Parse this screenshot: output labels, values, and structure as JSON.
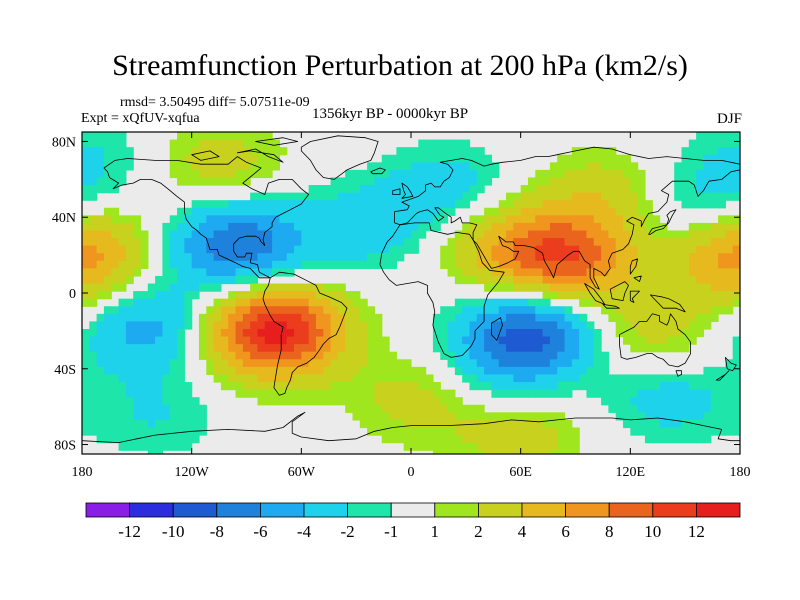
{
  "chart_data": {
    "type": "heatmap",
    "title": "Streamfunction Perturbation at 200 hPa (km2/s)",
    "stats_label": "rmsd= 3.50495 diff= 5.07511e-09",
    "experiment_label": "Expt = xQfUV-xqfua",
    "period_label": "1356kyr BP - 0000kyr BP",
    "season_label": "DJF",
    "x_ticks": [
      {
        "value": -180,
        "label": "180"
      },
      {
        "value": -120,
        "label": "120W"
      },
      {
        "value": -60,
        "label": "60W"
      },
      {
        "value": 0,
        "label": "0"
      },
      {
        "value": 60,
        "label": "60E"
      },
      {
        "value": 120,
        "label": "120E"
      },
      {
        "value": 180,
        "label": "180"
      }
    ],
    "y_ticks": [
      {
        "value": 80,
        "label": "80N"
      },
      {
        "value": 40,
        "label": "40N"
      },
      {
        "value": 0,
        "label": "0"
      },
      {
        "value": -40,
        "label": "40S"
      },
      {
        "value": -80,
        "label": "80S"
      }
    ],
    "xlim": [
      -180,
      180
    ],
    "ylim": [
      -85,
      85
    ],
    "colorbar": {
      "levels": [
        "-12",
        "-10",
        "-8",
        "-6",
        "-4",
        "-2",
        "-1",
        "1",
        "2",
        "4",
        "6",
        "8",
        "10",
        "12"
      ],
      "colors": [
        "#8a1ee6",
        "#2d2de0",
        "#1e5ad2",
        "#1e82dc",
        "#1eaaf0",
        "#1ed2eb",
        "#1ee6aa",
        "#ebebeb",
        "#a0e61e",
        "#c8d21e",
        "#e6b91e",
        "#f0961e",
        "#eb641e",
        "#eb3c1e",
        "#e61e1e"
      ]
    },
    "field_features": [
      {
        "lon": -75,
        "lat": -20,
        "value": 13
      },
      {
        "lon": 85,
        "lat": 18,
        "value": 9
      },
      {
        "lon": -105,
        "lat": 68,
        "value": 3
      },
      {
        "lon": -180,
        "lat": 15,
        "value": 5
      },
      {
        "lon": 50,
        "lat": 25,
        "value": 4
      },
      {
        "lon": 105,
        "lat": 52,
        "value": 3
      },
      {
        "lon": 5,
        "lat": -55,
        "value": 3
      },
      {
        "lon": 130,
        "lat": -22,
        "value": 3
      },
      {
        "lon": 180,
        "lat": 28,
        "value": 3
      },
      {
        "lon": 60,
        "lat": -75,
        "value": 3
      },
      {
        "lon": -95,
        "lat": 25,
        "value": -8
      },
      {
        "lon": 65,
        "lat": -22,
        "value": -9
      },
      {
        "lon": -145,
        "lat": -18,
        "value": -5
      },
      {
        "lon": -25,
        "lat": 35,
        "value": -3
      },
      {
        "lon": 20,
        "lat": 55,
        "value": -3
      },
      {
        "lon": 160,
        "lat": 45,
        "value": -3
      },
      {
        "lon": 140,
        "lat": -55,
        "value": -3
      },
      {
        "lon": -175,
        "lat": 70,
        "value": -2
      },
      {
        "lon": 40,
        "lat": -45,
        "value": -2
      },
      {
        "lon": -140,
        "lat": -65,
        "value": -2
      }
    ]
  }
}
